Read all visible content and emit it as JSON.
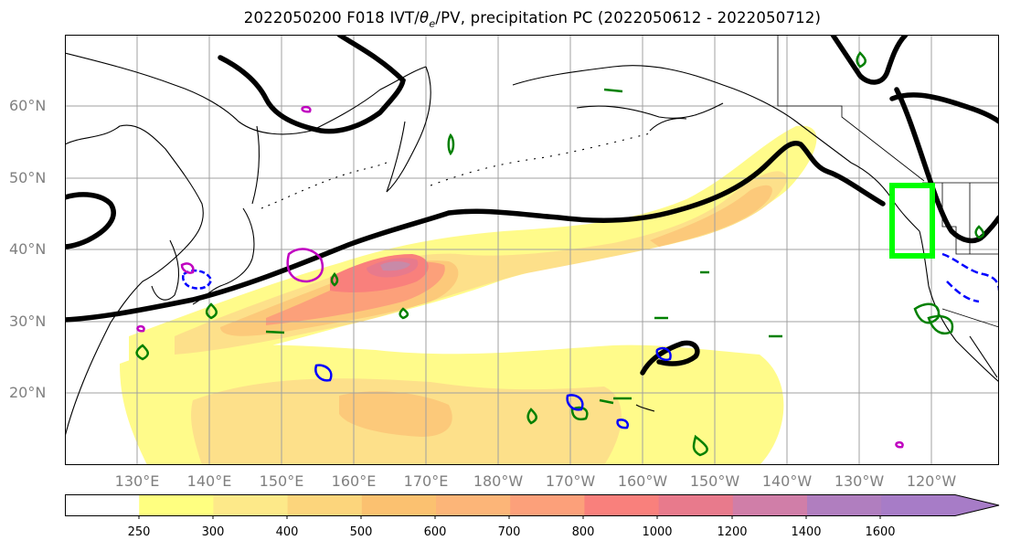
{
  "title": {
    "prefix": "2022050200 F018 IVT/",
    "theta": "θ",
    "sub": "e",
    "suffix": "/PV, precipitation PC (2022050612 - 2022050712)"
  },
  "lat_labels": [
    "60°N",
    "50°N",
    "40°N",
    "30°N",
    "20°N"
  ],
  "lon_labels": [
    "130°E",
    "140°E",
    "150°E",
    "160°E",
    "170°E",
    "180°W",
    "170°W",
    "160°W",
    "150°W",
    "140°W",
    "130°W",
    "120°W"
  ],
  "colorbar": {
    "ticks": [
      "250",
      "300",
      "400",
      "500",
      "600",
      "700",
      "800",
      "1000",
      "1200",
      "1400",
      "1600"
    ],
    "colors": [
      "#ffffff",
      "#ffff80",
      "#fde989",
      "#fcd57c",
      "#fbc170",
      "#fcb578",
      "#fca07a",
      "#f9807c",
      "#e87a8c",
      "#d07ea8",
      "#b07ebf",
      "#a77cc7"
    ]
  },
  "map": {
    "highlight_box_color": "#00ff00",
    "contour_color": "#000000",
    "green_contour_color": "#008000",
    "blue_contour_color": "#0000ff",
    "magenta_contour_color": "#c000c0"
  }
}
